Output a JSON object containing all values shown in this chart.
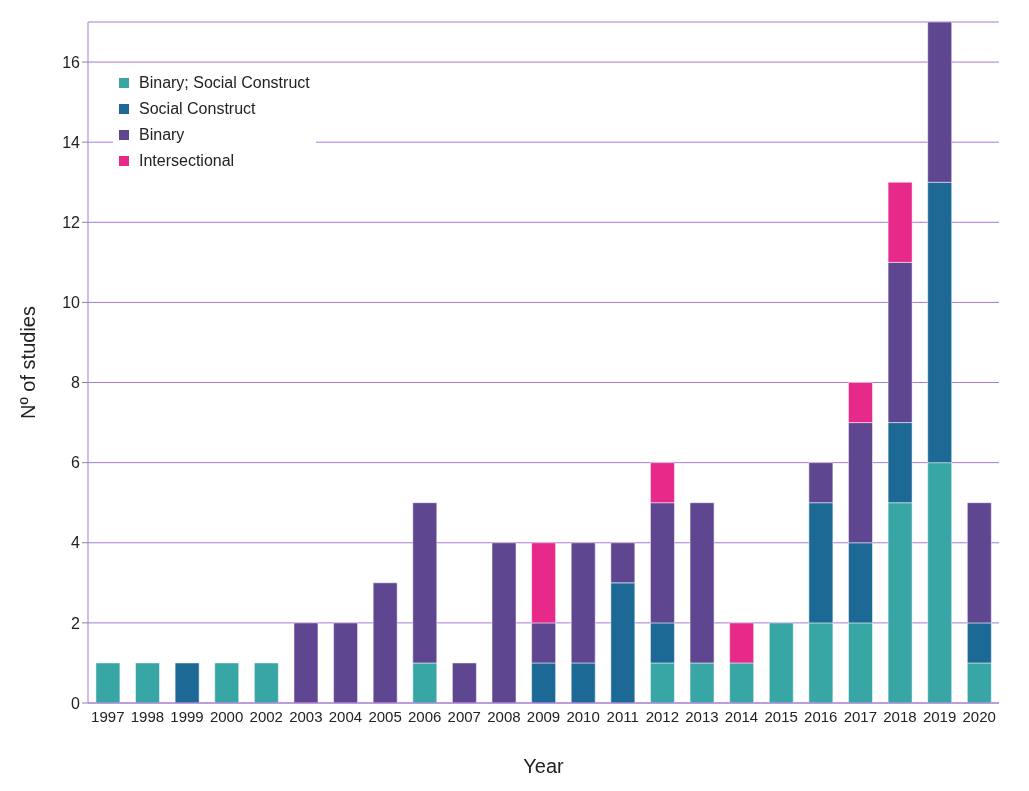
{
  "chart_data": {
    "type": "bar",
    "xlabel": "Year",
    "ylabel": "Nº of studies",
    "categories": [
      "1997",
      "1998",
      "1999",
      "2000",
      "2002",
      "2003",
      "2004",
      "2005",
      "2006",
      "2007",
      "2008",
      "2009",
      "2010",
      "2011",
      "2012",
      "2013",
      "2014",
      "2015",
      "2016",
      "2017",
      "2018",
      "2019",
      "2020"
    ],
    "stacked": true,
    "series": [
      {
        "name": "Binary; Social Construct",
        "color": "#38a6a5",
        "values": [
          1,
          1,
          null,
          1,
          1,
          null,
          null,
          null,
          1,
          null,
          null,
          null,
          null,
          null,
          1,
          1,
          1,
          2,
          2,
          2,
          5,
          6,
          1
        ]
      },
      {
        "name": "Social Construct",
        "color": "#1d6996",
        "values": [
          null,
          null,
          1,
          null,
          null,
          null,
          null,
          null,
          null,
          null,
          null,
          1,
          1,
          3,
          1,
          null,
          null,
          null,
          3,
          2,
          2,
          7,
          1
        ]
      },
      {
        "name": "Binary",
        "color": "#5f4690",
        "values": [
          null,
          null,
          null,
          null,
          null,
          2,
          2,
          3,
          4,
          1,
          4,
          1,
          3,
          1,
          3,
          4,
          null,
          null,
          1,
          3,
          4,
          4,
          3
        ]
      },
      {
        "name": "Intersectional",
        "color": "#e7298a",
        "values": [
          null,
          null,
          null,
          null,
          null,
          null,
          null,
          null,
          null,
          null,
          null,
          2,
          null,
          null,
          1,
          null,
          1,
          null,
          null,
          1,
          2,
          null,
          null
        ]
      }
    ],
    "ylim": [
      0,
      17
    ],
    "yticks": [
      0,
      2,
      4,
      6,
      8,
      10,
      12,
      14,
      16
    ],
    "grid": "y",
    "legend": "top left"
  }
}
